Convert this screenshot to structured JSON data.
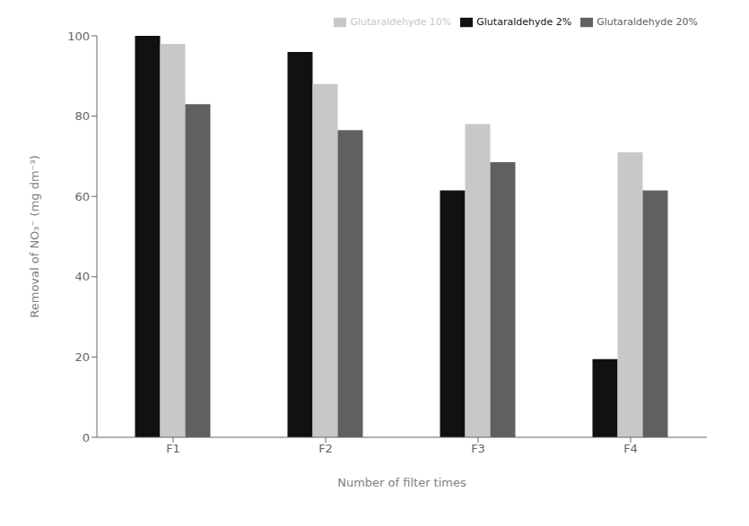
{
  "chart_data": {
    "type": "bar",
    "categories": [
      "F1",
      "F2",
      "F3",
      "F4"
    ],
    "series": [
      {
        "name": "Glutaraldehyde 2%",
        "color": "#111111",
        "values": [
          100,
          96,
          61.5,
          19.5
        ]
      },
      {
        "name": "Glutaraldehyde 10%",
        "color": "#c8c8c8",
        "values": [
          98,
          88,
          78,
          71
        ]
      },
      {
        "name": "Glutaraldehyde 20%",
        "color": "#606060",
        "values": [
          83,
          76.5,
          68.5,
          61.5
        ]
      }
    ],
    "xlabel": "Number of filter times",
    "ylabel": "Removal of NO₃⁻ (mg dm⁻³)",
    "ylim": [
      0,
      100
    ],
    "yticks": [
      0,
      20,
      40,
      60,
      80,
      100
    ],
    "grid": false,
    "legend": "upper right"
  }
}
